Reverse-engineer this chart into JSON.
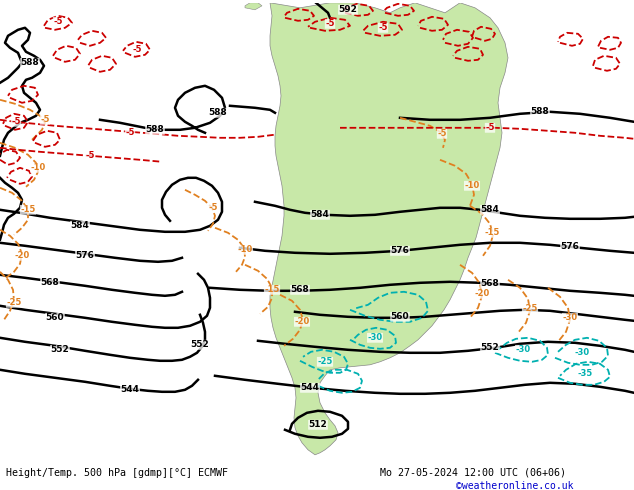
{
  "title_left": "Height/Temp. 500 hPa [gdmp][°C] ECMWF",
  "title_right": "Mo 27-05-2024 12:00 UTC (06+06)",
  "credit": "©weatheronline.co.uk",
  "bg_gray": "#e8e8e8",
  "bg_green": "#c8e8a8",
  "bg_white": "#ffffff",
  "figsize": [
    6.34,
    4.9
  ],
  "dpi": 100,
  "text_color": "#000000",
  "credit_color": "#0000cc",
  "black": "#000000",
  "orange": "#e08020",
  "red": "#cc0000",
  "cyan": "#00b0b0",
  "green_land": "#b0d890"
}
